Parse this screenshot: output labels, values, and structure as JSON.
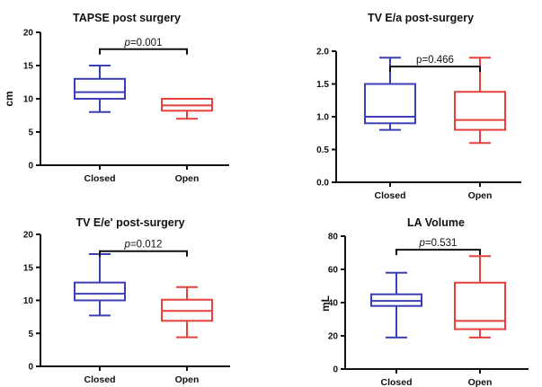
{
  "colors": {
    "closed": "#3b3fb6",
    "open": "#e8403a",
    "axis": "#111111"
  },
  "chart_data": [
    {
      "type": "box",
      "title": "TAPSE post surgery",
      "ylabel": "cm",
      "ylim": [
        0,
        20
      ],
      "yticks": [
        0,
        5,
        10,
        15,
        20
      ],
      "yticklabels": [
        "0",
        "5",
        "10",
        "15",
        "20"
      ],
      "categories": [
        "Closed",
        "Open"
      ],
      "boxes": [
        {
          "category": "Closed",
          "min": 8,
          "q1": 10,
          "median": 11,
          "q3": 13,
          "max": 15
        },
        {
          "category": "Open",
          "min": 7,
          "q1": 8.2,
          "median": 9,
          "q3": 10,
          "max": 10
        }
      ],
      "annotation": {
        "italic": "p",
        "text": "=0.001",
        "y": 18
      }
    },
    {
      "type": "box",
      "title": "TV E/a post-surgery",
      "ylabel": "",
      "ylim": [
        0,
        2.0
      ],
      "yticks": [
        0,
        0.5,
        1.0,
        1.5,
        2.0
      ],
      "yticklabels": [
        "0.0",
        "0.5",
        "1.0",
        "1.5",
        "2.0"
      ],
      "categories": [
        "Closed",
        "Open"
      ],
      "boxes": [
        {
          "category": "Closed",
          "min": 0.8,
          "q1": 0.9,
          "median": 1.0,
          "q3": 1.5,
          "max": 1.9
        },
        {
          "category": "Open",
          "min": 0.6,
          "q1": 0.8,
          "median": 0.95,
          "q3": 1.38,
          "max": 1.9
        }
      ],
      "annotation": {
        "italic": "",
        "text": "p=0.466",
        "y": 1.82
      }
    },
    {
      "type": "box",
      "title": "TV E/e' post-surgery",
      "ylabel": "",
      "ylim": [
        0,
        20
      ],
      "yticks": [
        0,
        5,
        10,
        15,
        20
      ],
      "yticklabels": [
        "0",
        "5",
        "10",
        "15",
        "20"
      ],
      "categories": [
        "Closed",
        "Open"
      ],
      "boxes": [
        {
          "category": "Closed",
          "min": 7.7,
          "q1": 10,
          "median": 11,
          "q3": 12.7,
          "max": 17
        },
        {
          "category": "Open",
          "min": 4.4,
          "q1": 6.9,
          "median": 8.4,
          "q3": 10.1,
          "max": 12
        }
      ],
      "annotation": {
        "italic": "p",
        "text": "=0.012",
        "y": 18
      }
    },
    {
      "type": "box",
      "title": "LA Volume",
      "ylabel": "mL",
      "ylim": [
        0,
        80
      ],
      "yticks": [
        0,
        20,
        40,
        60,
        80
      ],
      "yticklabels": [
        "0",
        "20",
        "40",
        "60",
        "80"
      ],
      "categories": [
        "Closed",
        "Open"
      ],
      "boxes": [
        {
          "category": "Closed",
          "min": 19,
          "q1": 38,
          "median": 41,
          "q3": 45,
          "max": 58
        },
        {
          "category": "Open",
          "min": 19,
          "q1": 24,
          "median": 29,
          "q3": 52,
          "max": 68
        }
      ],
      "annotation": {
        "italic": "p",
        "text": "=0.531",
        "y": 74
      }
    }
  ]
}
